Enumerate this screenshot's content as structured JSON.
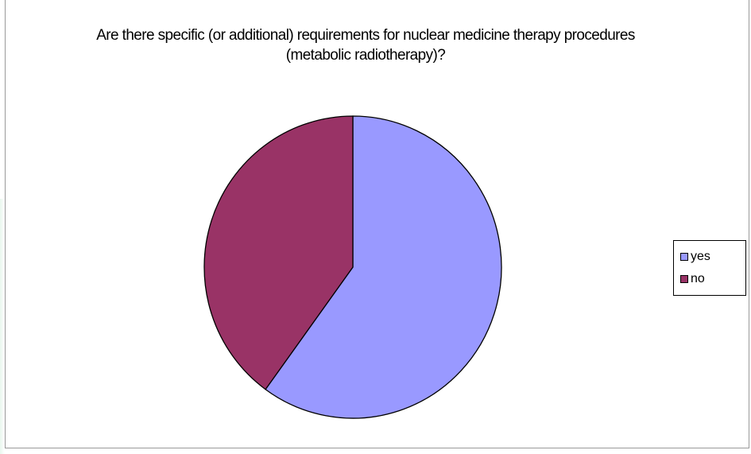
{
  "chart_data": {
    "type": "pie",
    "title": "Are there specific (or additional) requirements for nuclear medicine therapy procedures (metabolic radiotherapy)?",
    "categories": [
      "yes",
      "no"
    ],
    "values": [
      60,
      40
    ],
    "colors": [
      "#9999ff",
      "#993366"
    ],
    "legend_position": "right"
  }
}
